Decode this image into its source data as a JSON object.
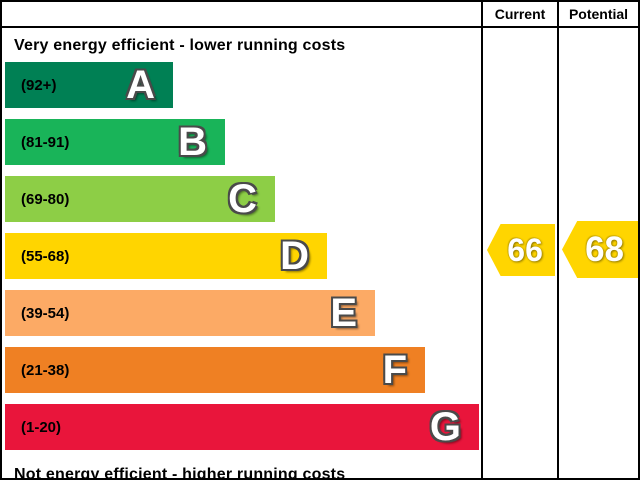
{
  "header": {
    "current": "Current",
    "potential": "Potential"
  },
  "chart_data": {
    "type": "bar",
    "subtype": "epc-energy-efficiency-rating",
    "top_caption": "Very energy efficient - lower running costs",
    "bottom_caption": "Not energy efficient - higher running costs",
    "bands": [
      {
        "letter": "A",
        "range": "(92+)",
        "color": "#008054"
      },
      {
        "letter": "B",
        "range": "(81-91)",
        "color": "#19b459"
      },
      {
        "letter": "C",
        "range": "(69-80)",
        "color": "#8dce46"
      },
      {
        "letter": "D",
        "range": "(55-68)",
        "color": "#ffd500"
      },
      {
        "letter": "E",
        "range": "(39-54)",
        "color": "#fcaa65"
      },
      {
        "letter": "F",
        "range": "(21-38)",
        "color": "#ef8023"
      },
      {
        "letter": "G",
        "range": "(1-20)",
        "color": "#e9153b"
      }
    ],
    "current": {
      "value": "66",
      "color": "#ffd500"
    },
    "potential": {
      "value": "68",
      "color": "#ffd500"
    }
  }
}
